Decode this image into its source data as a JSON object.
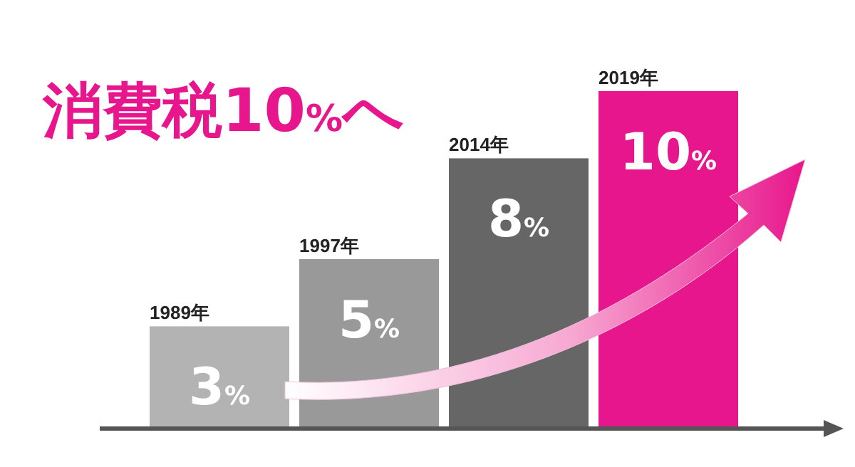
{
  "chart_data": {
    "type": "bar",
    "title": "消費税10%へ",
    "categories": [
      "1989年",
      "1997年",
      "2014年",
      "2019年"
    ],
    "values": [
      3,
      5,
      8,
      10
    ],
    "value_labels": [
      "3%",
      "5%",
      "8%",
      "10%"
    ],
    "colors": [
      "#b3b3b3",
      "#999999",
      "#666666",
      "#e8168c"
    ]
  }
}
